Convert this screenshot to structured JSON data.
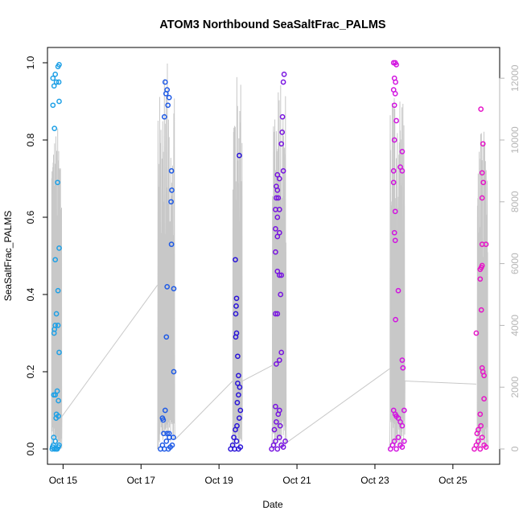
{
  "chart_data": {
    "type": "scatter",
    "title": "ATOM3 Northbound SeaSaltFrac_PALMS",
    "xlabel": "Date",
    "ylabel": "SeaSaltFrac_PALMS",
    "xlim": [
      14.6,
      26.2
    ],
    "ylim": [
      0,
      1
    ],
    "y2lim": [
      0,
      12500
    ],
    "x_ticks": [
      {
        "value": 15,
        "label": "Oct 15"
      },
      {
        "value": 17,
        "label": "Oct 17"
      },
      {
        "value": 19,
        "label": "Oct 19"
      },
      {
        "value": 21,
        "label": "Oct 21"
      },
      {
        "value": 23,
        "label": "Oct 23"
      },
      {
        "value": 25,
        "label": "Oct 25"
      }
    ],
    "y_ticks": [
      "0.0",
      "0.2",
      "0.4",
      "0.6",
      "0.8",
      "1.0"
    ],
    "y2_ticks": [
      "0",
      "2000",
      "4000",
      "6000",
      "8000",
      "10000",
      "12000"
    ],
    "grid": false,
    "colors": {
      "flight1": "#1ea0e6",
      "flight2": "#1e5ae6",
      "flight3": "#2a14d8",
      "flight4": "#7814e0",
      "flight5": "#d214e0",
      "flight6": "#e614c8",
      "altitude_line": "#c8c8c8",
      "secondary_axis": "#b5b5b5"
    },
    "series": [
      {
        "color": "#1ea0e6",
        "points": [
          [
            14.72,
            0.0
          ],
          [
            14.75,
            0.01
          ],
          [
            14.78,
            0.0
          ],
          [
            14.8,
            0.02
          ],
          [
            14.73,
            0.005
          ],
          [
            14.85,
            0.0
          ],
          [
            14.9,
            0.01
          ],
          [
            14.76,
            0.03
          ],
          [
            14.82,
            0.0
          ],
          [
            14.88,
            0.005
          ],
          [
            14.74,
            0.96
          ],
          [
            14.77,
            0.94
          ],
          [
            14.8,
            0.97
          ],
          [
            14.83,
            0.95
          ],
          [
            14.87,
            0.99
          ],
          [
            14.9,
            0.995
          ],
          [
            14.89,
            0.95
          ],
          [
            14.74,
            0.89
          ],
          [
            14.9,
            0.9
          ],
          [
            14.78,
            0.83
          ],
          [
            14.86,
            0.69
          ],
          [
            14.9,
            0.52
          ],
          [
            14.8,
            0.49
          ],
          [
            14.87,
            0.41
          ],
          [
            14.83,
            0.35
          ],
          [
            14.8,
            0.32
          ],
          [
            14.87,
            0.32
          ],
          [
            14.77,
            0.3
          ],
          [
            14.78,
            0.31
          ],
          [
            14.9,
            0.25
          ],
          [
            14.76,
            0.14
          ],
          [
            14.8,
            0.14
          ],
          [
            14.85,
            0.15
          ],
          [
            14.88,
            0.125
          ],
          [
            14.83,
            0.09
          ],
          [
            14.88,
            0.085
          ],
          [
            14.82,
            0.08
          ]
        ]
      },
      {
        "color": "#1e5ae6",
        "points": [
          [
            17.5,
            0.0
          ],
          [
            17.55,
            0.01
          ],
          [
            17.6,
            0.0
          ],
          [
            17.65,
            0.02
          ],
          [
            17.7,
            0.0
          ],
          [
            17.75,
            0.005
          ],
          [
            17.8,
            0.01
          ],
          [
            17.58,
            0.04
          ],
          [
            17.67,
            0.04
          ],
          [
            17.73,
            0.03
          ],
          [
            17.83,
            0.03
          ],
          [
            17.62,
            0.95
          ],
          [
            17.67,
            0.93
          ],
          [
            17.64,
            0.92
          ],
          [
            17.72,
            0.91
          ],
          [
            17.69,
            0.89
          ],
          [
            17.6,
            0.86
          ],
          [
            17.78,
            0.72
          ],
          [
            17.79,
            0.67
          ],
          [
            17.77,
            0.64
          ],
          [
            17.78,
            0.53
          ],
          [
            17.67,
            0.42
          ],
          [
            17.84,
            0.415
          ],
          [
            17.65,
            0.29
          ],
          [
            17.84,
            0.2
          ],
          [
            17.62,
            0.1
          ],
          [
            17.55,
            0.08
          ],
          [
            17.57,
            0.075
          ],
          [
            17.72,
            0.04
          ]
        ]
      },
      {
        "color": "#2a14d8",
        "points": [
          [
            19.3,
            0.0
          ],
          [
            19.35,
            0.01
          ],
          [
            19.4,
            0.0
          ],
          [
            19.45,
            0.02
          ],
          [
            19.5,
            0.0
          ],
          [
            19.55,
            0.005
          ],
          [
            19.38,
            0.03
          ],
          [
            19.42,
            0.05
          ],
          [
            19.46,
            0.06
          ],
          [
            19.52,
            0.08
          ],
          [
            19.55,
            0.1
          ],
          [
            19.47,
            0.12
          ],
          [
            19.5,
            0.14
          ],
          [
            19.53,
            0.16
          ],
          [
            19.48,
            0.17
          ],
          [
            19.5,
            0.19
          ],
          [
            19.42,
            0.49
          ],
          [
            19.45,
            0.39
          ],
          [
            19.44,
            0.37
          ],
          [
            19.43,
            0.35
          ],
          [
            19.45,
            0.3
          ],
          [
            19.43,
            0.29
          ],
          [
            19.48,
            0.24
          ],
          [
            19.52,
            0.76
          ]
        ]
      },
      {
        "color": "#7814e0",
        "points": [
          [
            20.35,
            0.0
          ],
          [
            20.4,
            0.01
          ],
          [
            20.45,
            0.02
          ],
          [
            20.5,
            0.0
          ],
          [
            20.55,
            0.03
          ],
          [
            20.6,
            0.01
          ],
          [
            20.65,
            0.005
          ],
          [
            20.7,
            0.02
          ],
          [
            20.42,
            0.05
          ],
          [
            20.47,
            0.07
          ],
          [
            20.52,
            0.09
          ],
          [
            20.57,
            0.06
          ],
          [
            20.45,
            0.11
          ],
          [
            20.55,
            0.1
          ],
          [
            20.47,
            0.22
          ],
          [
            20.55,
            0.23
          ],
          [
            20.5,
            0.35
          ],
          [
            20.45,
            0.35
          ],
          [
            20.6,
            0.25
          ],
          [
            20.5,
            0.46
          ],
          [
            20.55,
            0.45
          ],
          [
            20.45,
            0.51
          ],
          [
            20.5,
            0.55
          ],
          [
            20.55,
            0.56
          ],
          [
            20.45,
            0.57
          ],
          [
            20.5,
            0.6
          ],
          [
            20.55,
            0.62
          ],
          [
            20.45,
            0.62
          ],
          [
            20.47,
            0.65
          ],
          [
            20.52,
            0.65
          ],
          [
            20.5,
            0.67
          ],
          [
            20.55,
            0.7
          ],
          [
            20.5,
            0.71
          ],
          [
            20.47,
            0.68
          ],
          [
            20.65,
            0.72
          ],
          [
            20.6,
            0.79
          ],
          [
            20.62,
            0.82
          ],
          [
            20.63,
            0.86
          ],
          [
            20.65,
            0.95
          ],
          [
            20.67,
            0.97
          ],
          [
            20.58,
            0.4
          ],
          [
            20.6,
            0.45
          ]
        ]
      },
      {
        "color": "#d214e0",
        "points": [
          [
            23.4,
            0.0
          ],
          [
            23.45,
            0.01
          ],
          [
            23.5,
            0.02
          ],
          [
            23.55,
            0.0
          ],
          [
            23.6,
            0.03
          ],
          [
            23.65,
            0.01
          ],
          [
            23.7,
            0.005
          ],
          [
            23.75,
            0.02
          ],
          [
            23.48,
            0.1
          ],
          [
            23.52,
            0.09
          ],
          [
            23.55,
            0.085
          ],
          [
            23.6,
            0.08
          ],
          [
            23.65,
            0.07
          ],
          [
            23.7,
            0.06
          ],
          [
            23.75,
            0.1
          ],
          [
            23.48,
            1.0
          ],
          [
            23.52,
            1.0
          ],
          [
            23.55,
            0.995
          ],
          [
            23.5,
            0.96
          ],
          [
            23.53,
            0.95
          ],
          [
            23.48,
            0.93
          ],
          [
            23.52,
            0.92
          ],
          [
            23.5,
            0.89
          ],
          [
            23.55,
            0.85
          ],
          [
            23.5,
            0.8
          ],
          [
            23.7,
            0.77
          ],
          [
            23.65,
            0.73
          ],
          [
            23.7,
            0.72
          ],
          [
            23.48,
            0.72
          ],
          [
            23.48,
            0.69
          ],
          [
            23.52,
            0.615
          ],
          [
            23.5,
            0.56
          ],
          [
            23.52,
            0.54
          ],
          [
            23.6,
            0.41
          ],
          [
            23.53,
            0.335
          ],
          [
            23.7,
            0.23
          ],
          [
            23.72,
            0.21
          ]
        ]
      },
      {
        "color": "#e614c8",
        "points": [
          [
            25.55,
            0.0
          ],
          [
            25.6,
            0.01
          ],
          [
            25.65,
            0.02
          ],
          [
            25.7,
            0.0
          ],
          [
            25.75,
            0.03
          ],
          [
            25.8,
            0.01
          ],
          [
            25.85,
            0.005
          ],
          [
            25.62,
            0.04
          ],
          [
            25.72,
            0.06
          ],
          [
            25.65,
            0.05
          ],
          [
            25.6,
            0.3
          ],
          [
            25.72,
            0.88
          ],
          [
            25.77,
            0.79
          ],
          [
            25.75,
            0.715
          ],
          [
            25.78,
            0.69
          ],
          [
            25.75,
            0.65
          ],
          [
            25.73,
            0.47
          ],
          [
            25.75,
            0.475
          ],
          [
            25.7,
            0.465
          ],
          [
            25.7,
            0.44
          ],
          [
            25.85,
            0.53
          ],
          [
            25.75,
            0.53
          ],
          [
            25.73,
            0.36
          ],
          [
            25.75,
            0.21
          ],
          [
            25.77,
            0.2
          ],
          [
            25.8,
            0.19
          ],
          [
            25.8,
            0.13
          ],
          [
            25.7,
            0.09
          ]
        ]
      }
    ],
    "altitude_line": {
      "axis": "secondary",
      "flights": [
        {
          "x0": 14.7,
          "x1": 14.97,
          "peak": 10500,
          "end": 1050
        },
        {
          "x0": 17.42,
          "x1": 17.87,
          "peak": 12500,
          "end": 300
        },
        {
          "x0": 19.35,
          "x1": 19.6,
          "peak": 12200,
          "end": 2200
        },
        {
          "x0": 20.36,
          "x1": 20.73,
          "peak": 11900,
          "end": 200
        },
        {
          "x0": 23.38,
          "x1": 23.77,
          "peak": 12300,
          "end": 2200
        },
        {
          "x0": 25.62,
          "x1": 25.9,
          "peak": 10300,
          "end": 300
        }
      ],
      "links": [
        [
          [
            14.97,
            1050
          ],
          [
            17.42,
            5300
          ]
        ],
        [
          [
            17.87,
            300
          ],
          [
            19.35,
            2200
          ]
        ],
        [
          [
            19.6,
            2200
          ],
          [
            20.36,
            2700
          ]
        ],
        [
          [
            20.73,
            200
          ],
          [
            23.38,
            2600
          ]
        ],
        [
          [
            23.77,
            2200
          ],
          [
            25.6,
            2100
          ]
        ]
      ]
    }
  }
}
